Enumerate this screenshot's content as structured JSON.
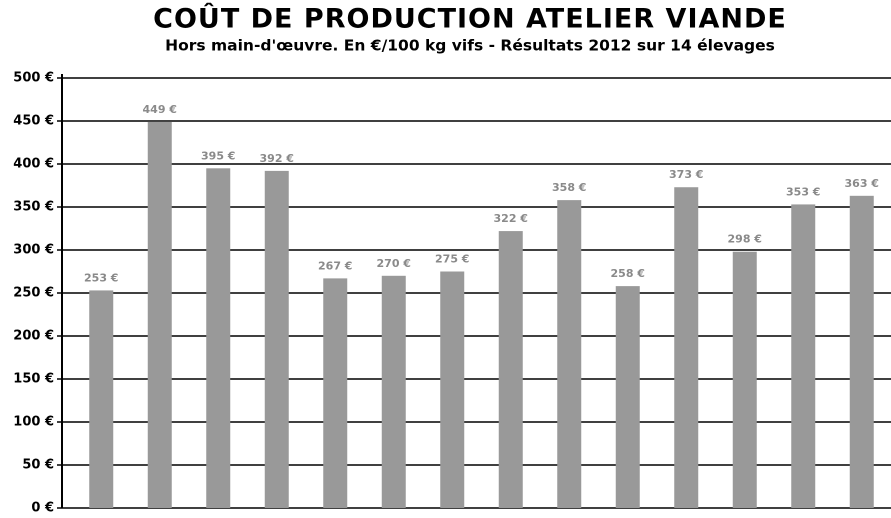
{
  "chart_data": {
    "type": "bar",
    "title": "COÛT DE PRODUCTION ATELIER VIANDE",
    "subtitle": "Hors main-d'œuvre. En €/100 kg vifs - Résultats 2012 sur 14 élevages",
    "categories": [
      null,
      null,
      null,
      null,
      null,
      null,
      null,
      null,
      null,
      null,
      null,
      null,
      null,
      null
    ],
    "values": [
      253,
      449,
      395,
      392,
      267,
      270,
      275,
      322,
      358,
      258,
      373,
      298,
      353,
      363
    ],
    "value_labels": [
      "253 €",
      "449 €",
      "395 €",
      "392 €",
      "267 €",
      "270 €",
      "275 €",
      "322 €",
      "358 €",
      "258 €",
      "373 €",
      "298 €",
      "353 €",
      "363 €"
    ],
    "color": "#999999",
    "ylim": [
      0,
      500
    ],
    "yticks": [
      {
        "value": 0,
        "label": "0 €"
      },
      {
        "value": 50,
        "label": "50 €"
      },
      {
        "value": 100,
        "label": "100 €"
      },
      {
        "value": 150,
        "label": "150 €"
      },
      {
        "value": 200,
        "label": "200 €"
      },
      {
        "value": 250,
        "label": "250 €"
      },
      {
        "value": 300,
        "label": "300 €"
      },
      {
        "value": 350,
        "label": "350 €"
      },
      {
        "value": 400,
        "label": "400 €"
      },
      {
        "value": 450,
        "label": "450 €"
      },
      {
        "value": 500,
        "label": "500 €"
      }
    ],
    "grid": true
  }
}
